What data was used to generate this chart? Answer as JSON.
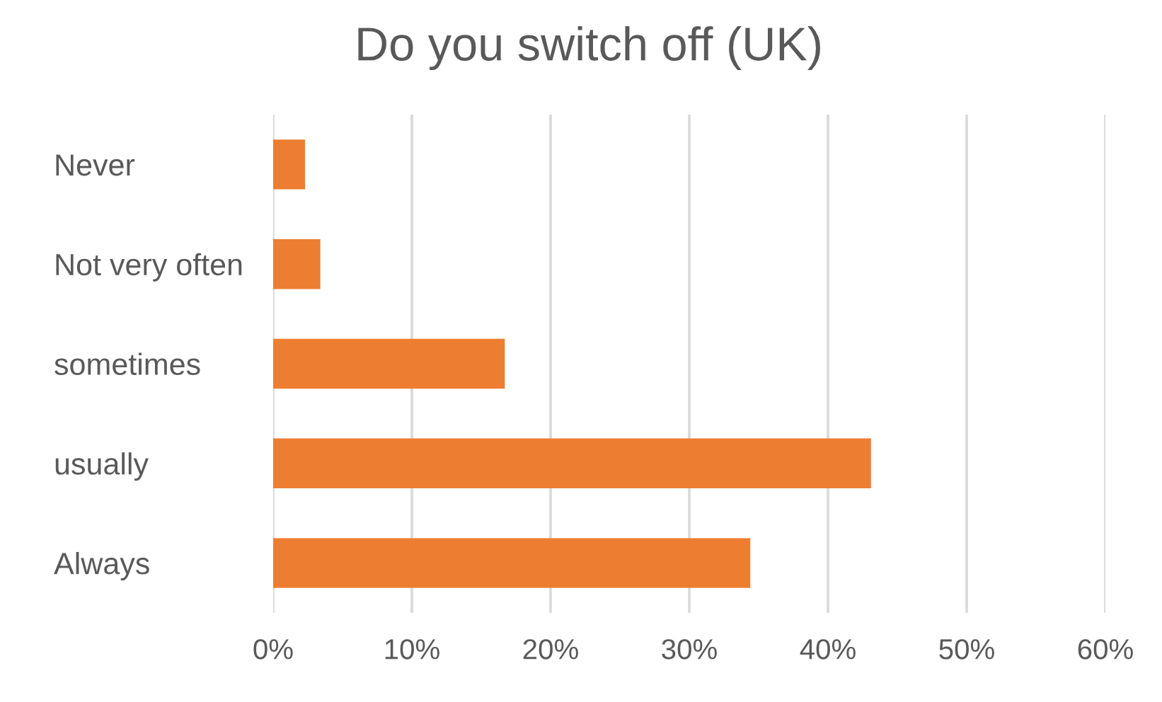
{
  "chart_data": {
    "type": "bar",
    "orientation": "horizontal",
    "title": "Do you switch off (UK)",
    "categories": [
      "Never",
      "Not very often",
      "sometimes",
      "usually",
      "Always"
    ],
    "values": [
      2.3,
      3.4,
      16.7,
      43.1,
      34.4
    ],
    "color": "#ed7d31",
    "xlim": [
      0,
      60
    ],
    "xticks": [
      {
        "value": 0,
        "label": "0%"
      },
      {
        "value": 10,
        "label": "10%"
      },
      {
        "value": 20,
        "label": "20%"
      },
      {
        "value": 30,
        "label": "30%"
      },
      {
        "value": 40,
        "label": "40%"
      },
      {
        "value": 50,
        "label": "50%"
      },
      {
        "value": 60,
        "label": "60%"
      }
    ],
    "grid": "x",
    "legend": false
  }
}
